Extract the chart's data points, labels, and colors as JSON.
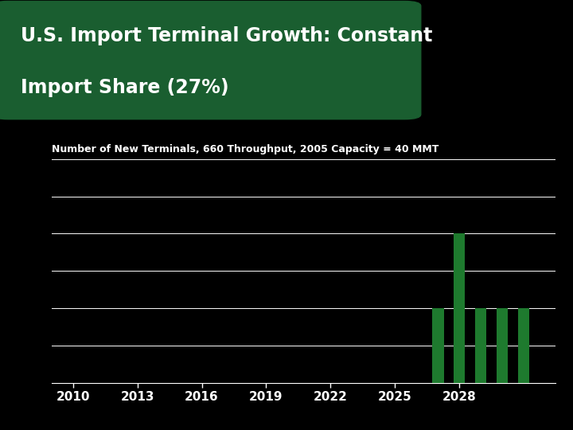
{
  "title_line1": "U.S. Import Terminal Growth: Constant",
  "title_line2": "Import Share (27%)",
  "subtitle": "Number of New Terminals, 660 Throughput, 2005 Capacity = 40 MMT",
  "background_color": "#000000",
  "title_bg_color": "#1a5e30",
  "title_text_color": "#ffffff",
  "subtitle_text_color": "#ffffff",
  "axis_text_color": "#ffffff",
  "bar_color": "#1e7a2e",
  "grid_color": "#ffffff",
  "years": [
    2010,
    2011,
    2012,
    2013,
    2014,
    2015,
    2016,
    2017,
    2018,
    2019,
    2020,
    2021,
    2022,
    2023,
    2024,
    2025,
    2026,
    2027,
    2028,
    2029,
    2030,
    2031
  ],
  "values": [
    0,
    0,
    0,
    0,
    0,
    0,
    0,
    0,
    0,
    0,
    0,
    0,
    0,
    0,
    0,
    0,
    0,
    1,
    2,
    1,
    1,
    1
  ],
  "xtick_years": [
    2010,
    2013,
    2016,
    2019,
    2022,
    2025,
    2028
  ],
  "ylim": [
    0,
    3
  ],
  "xlim_min": 2009.0,
  "xlim_max": 2032.5,
  "bar_width": 0.55,
  "title_fontsize": 17,
  "subtitle_fontsize": 9,
  "axis_fontsize": 11
}
